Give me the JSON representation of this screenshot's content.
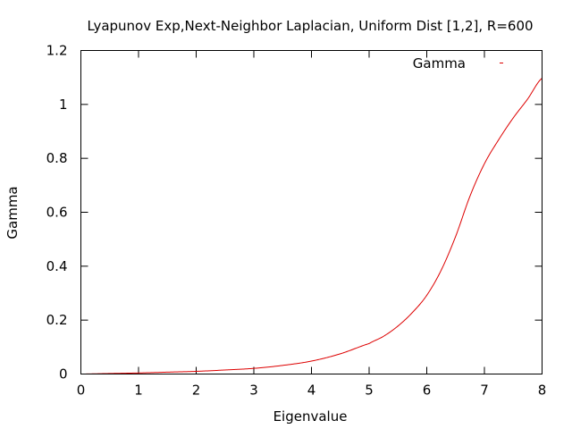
{
  "chart_data": {
    "type": "line",
    "title": "Lyapunov Exp,Next-Neighbor Laplacian, Uniform Dist [1,2], R=600",
    "xlabel": "Eigenvalue",
    "ylabel": "Gamma",
    "xlim": [
      0,
      8
    ],
    "ylim": [
      0,
      1.2
    ],
    "xticks": [
      0,
      1,
      2,
      3,
      4,
      5,
      6,
      7,
      8
    ],
    "yticks": [
      0,
      0.2,
      0.4,
      0.6,
      0.8,
      1,
      1.2
    ],
    "xtick_labels": [
      "0",
      "1",
      "2",
      "3",
      "4",
      "5",
      "6",
      "7",
      "8"
    ],
    "ytick_labels": [
      "0",
      "0.2",
      "0.4",
      "0.6",
      "0.8",
      "1",
      "1.2"
    ],
    "grid": false,
    "legend_position": "top-right",
    "series": [
      {
        "name": "Gamma",
        "color": "#dd0000",
        "points": [
          [
            0,
            0.0
          ],
          [
            0.5,
            0.002
          ],
          [
            1.0,
            0.004
          ],
          [
            1.5,
            0.007
          ],
          [
            2.0,
            0.01
          ],
          [
            2.5,
            0.015
          ],
          [
            3.0,
            0.021
          ],
          [
            3.5,
            0.032
          ],
          [
            4.0,
            0.048
          ],
          [
            4.5,
            0.075
          ],
          [
            5.0,
            0.113
          ],
          [
            5.25,
            0.14
          ],
          [
            5.5,
            0.178
          ],
          [
            5.75,
            0.228
          ],
          [
            6.0,
            0.292
          ],
          [
            6.25,
            0.385
          ],
          [
            6.5,
            0.51
          ],
          [
            6.75,
            0.66
          ],
          [
            7.0,
            0.78
          ],
          [
            7.25,
            0.87
          ],
          [
            7.5,
            0.95
          ],
          [
            7.75,
            1.02
          ],
          [
            8.0,
            1.097
          ]
        ]
      }
    ]
  }
}
